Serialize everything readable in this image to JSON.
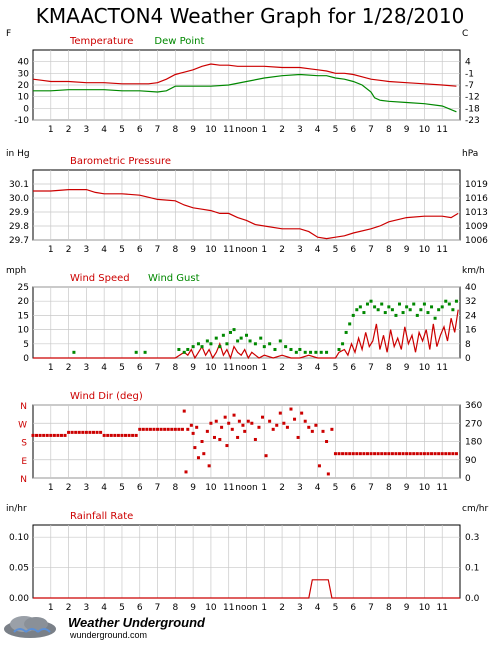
{
  "title": "KMAACTON4 Weather Graph for 1/28/2010",
  "hour_labels": [
    "1",
    "2",
    "3",
    "4",
    "5",
    "6",
    "7",
    "8",
    "9",
    "10",
    "11",
    "noon",
    "1",
    "2",
    "3",
    "4",
    "5",
    "6",
    "7",
    "8",
    "9",
    "10",
    "11"
  ],
  "logo": {
    "name": "Weather Underground",
    "url": "wunderground.com"
  },
  "colors": {
    "red": "#cc0000",
    "green": "#008800",
    "grid": "#c8c8c8"
  },
  "chart_data": [
    {
      "type": "line",
      "title": "Temperature",
      "ylabel": "F",
      "ylabel2": "C",
      "ylim": [
        -10,
        50
      ],
      "yticks": [
        40,
        30,
        20,
        10,
        0,
        -10
      ],
      "yticks2": [
        "4",
        "-1",
        "-7",
        "-12",
        "-18",
        "-23"
      ],
      "x_range_hours": [
        0,
        24
      ],
      "series": [
        {
          "name": "Temperature",
          "color": "#cc0000",
          "x": [
            0,
            0.5,
            1,
            2,
            3,
            4,
            5,
            6,
            6.5,
            7,
            7.5,
            8,
            8.5,
            9,
            9.5,
            10,
            10.5,
            11,
            11.5,
            12,
            13,
            14,
            15,
            15.5,
            16,
            16.5,
            17,
            17.5,
            18,
            18.5,
            19,
            19.5,
            20,
            21,
            22,
            23,
            23.8
          ],
          "values": [
            25,
            24,
            23,
            23,
            22,
            22,
            21,
            21,
            21,
            22,
            25,
            29,
            31,
            33,
            36,
            38,
            37,
            37,
            36,
            36,
            36,
            35,
            35,
            34,
            33,
            32,
            30,
            30,
            29,
            27,
            25,
            24,
            23,
            22,
            21,
            20,
            19
          ]
        },
        {
          "name": "Dew Point",
          "color": "#008800",
          "x": [
            0,
            1,
            2,
            3,
            4,
            5,
            6,
            7,
            7.5,
            8,
            9,
            10,
            11,
            12,
            13,
            14,
            15,
            16,
            16.5,
            17,
            17.5,
            18,
            18.5,
            19,
            19.2,
            19.5,
            20,
            21,
            22,
            23,
            23.8
          ],
          "values": [
            15,
            15,
            16,
            16,
            16,
            15,
            15,
            14,
            15,
            19,
            19,
            19,
            20,
            23,
            26,
            28,
            29,
            28,
            28,
            26,
            25,
            23,
            20,
            14,
            9,
            7,
            6,
            5,
            4,
            2,
            -3
          ]
        }
      ]
    },
    {
      "type": "line",
      "title": "Barometric Pressure",
      "ylabel": "in Hg",
      "ylabel2": "hPa",
      "ylim": [
        29.7,
        30.2
      ],
      "yticks": [
        30.1,
        30.0,
        29.9,
        29.8,
        29.7
      ],
      "yticks2": [
        "1019",
        "1016",
        "1013",
        "1009",
        "1006"
      ],
      "x_range_hours": [
        0,
        24
      ],
      "series": [
        {
          "color": "#cc0000",
          "x": [
            0,
            1,
            2,
            3,
            3.5,
            4,
            5,
            6,
            7,
            8,
            8.5,
            9,
            9.5,
            10,
            10.5,
            11,
            11.5,
            12,
            12.5,
            13,
            14,
            15,
            15.5,
            16,
            16.5,
            17,
            17.5,
            18,
            19,
            19.5,
            20,
            21,
            22,
            23,
            23.5,
            23.9
          ],
          "values": [
            30.05,
            30.05,
            30.06,
            30.06,
            30.04,
            30.03,
            30.03,
            30.02,
            29.99,
            29.98,
            29.95,
            29.93,
            29.92,
            29.91,
            29.89,
            29.89,
            29.86,
            29.84,
            29.81,
            29.8,
            29.78,
            29.78,
            29.76,
            29.72,
            29.71,
            29.72,
            29.73,
            29.75,
            29.78,
            29.8,
            29.83,
            29.86,
            29.87,
            29.87,
            29.86,
            29.89
          ]
        }
      ]
    },
    {
      "type": "line",
      "title": "Wind Speed",
      "ylabel": "mph",
      "ylabel2": "km/h",
      "ylim": [
        0,
        25
      ],
      "yticks": [
        25,
        20,
        15,
        10,
        5,
        0
      ],
      "yticks2": [
        "40",
        "32",
        "24",
        "16",
        "8",
        "0"
      ],
      "x_range_hours": [
        0,
        24
      ],
      "series": [
        {
          "name": "Wind Speed",
          "color": "#cc0000",
          "x": [
            0,
            1,
            2,
            3,
            4,
            5,
            6,
            7,
            8,
            8.5,
            8.7,
            8.9,
            9.1,
            9.3,
            9.5,
            9.7,
            9.9,
            10.1,
            10.3,
            10.5,
            10.7,
            10.9,
            11.1,
            11.3,
            11.5,
            11.7,
            11.9,
            12.1,
            12.3,
            12.5,
            12.7,
            13,
            13.5,
            14,
            14.5,
            15,
            15.5,
            16,
            16.5,
            17,
            17.2,
            17.5,
            17.7,
            17.9,
            18.1,
            18.3,
            18.5,
            18.7,
            18.9,
            19.1,
            19.3,
            19.5,
            19.7,
            19.9,
            20.1,
            20.3,
            20.5,
            20.7,
            20.9,
            21.1,
            21.3,
            21.5,
            21.7,
            21.9,
            22.1,
            22.3,
            22.5,
            22.7,
            22.9,
            23.1,
            23.3,
            23.5,
            23.7,
            23.9
          ],
          "values": [
            0,
            0,
            0,
            0,
            0,
            0,
            0,
            0,
            0,
            2,
            1,
            3,
            0,
            2,
            4,
            1,
            3,
            0,
            2,
            5,
            1,
            3,
            0,
            4,
            2,
            1,
            3,
            0,
            2,
            1,
            0,
            1,
            0,
            1,
            0,
            0,
            1,
            0,
            0,
            0,
            2,
            3,
            1,
            5,
            2,
            7,
            3,
            9,
            4,
            6,
            12,
            3,
            8,
            2,
            10,
            4,
            7,
            3,
            11,
            5,
            8,
            2,
            9,
            6,
            10,
            3,
            12,
            4,
            8,
            11,
            6,
            14,
            9,
            17
          ]
        },
        {
          "name": "Wind Gust",
          "color": "#008800",
          "type": "scatter",
          "x": [
            2.3,
            5.8,
            6.3,
            8.2,
            8.5,
            8.7,
            9.0,
            9.3,
            9.5,
            9.8,
            10.0,
            10.3,
            10.5,
            10.7,
            10.9,
            11.1,
            11.3,
            11.5,
            11.7,
            12.0,
            12.2,
            12.5,
            12.8,
            13.0,
            13.3,
            13.6,
            13.9,
            14.2,
            14.5,
            14.8,
            15.0,
            15.3,
            15.6,
            15.9,
            16.2,
            16.5,
            17.2,
            17.4,
            17.6,
            17.8,
            18.0,
            18.2,
            18.4,
            18.6,
            18.8,
            19.0,
            19.2,
            19.4,
            19.6,
            19.8,
            20.0,
            20.2,
            20.4,
            20.6,
            20.8,
            21.0,
            21.2,
            21.4,
            21.6,
            21.8,
            22.0,
            22.2,
            22.4,
            22.6,
            22.8,
            23.0,
            23.2,
            23.4,
            23.6,
            23.8
          ],
          "values": [
            2,
            2,
            2,
            3,
            2,
            3,
            4,
            5,
            4,
            6,
            5,
            7,
            4,
            8,
            5,
            9,
            10,
            6,
            7,
            8,
            6,
            5,
            7,
            4,
            5,
            3,
            6,
            4,
            3,
            2,
            3,
            2,
            2,
            2,
            2,
            2,
            3,
            5,
            9,
            12,
            15,
            17,
            18,
            16,
            19,
            20,
            18,
            17,
            19,
            16,
            18,
            17,
            15,
            19,
            16,
            18,
            17,
            19,
            15,
            17,
            19,
            16,
            18,
            14,
            17,
            18,
            20,
            19,
            17,
            20
          ]
        }
      ]
    },
    {
      "type": "scatter",
      "title": "Wind Dir (deg)",
      "ylabel2_ticks": [
        "360",
        "270",
        "180",
        "90",
        "0"
      ],
      "yticks_left": [
        "N",
        "W",
        "S",
        "E",
        "N"
      ],
      "ylim": [
        0,
        360
      ],
      "x_range_hours": [
        0,
        24
      ],
      "series": [
        {
          "color": "#cc0000",
          "x": [
            0,
            0.2,
            0.4,
            0.6,
            0.8,
            1.0,
            1.2,
            1.4,
            1.6,
            1.8,
            2.0,
            2.2,
            2.4,
            2.6,
            2.8,
            3.0,
            3.2,
            3.4,
            3.6,
            3.8,
            4.0,
            4.2,
            4.4,
            4.6,
            4.8,
            5.0,
            5.2,
            5.4,
            5.6,
            5.8,
            6.0,
            6.2,
            6.4,
            6.6,
            6.8,
            7.0,
            7.2,
            7.4,
            7.6,
            7.8,
            8.0,
            8.2,
            8.4,
            8.5,
            8.6,
            8.7,
            8.9,
            9.0,
            9.1,
            9.2,
            9.3,
            9.5,
            9.6,
            9.8,
            9.9,
            10.0,
            10.2,
            10.3,
            10.5,
            10.6,
            10.8,
            10.9,
            11.0,
            11.2,
            11.3,
            11.5,
            11.6,
            11.8,
            11.9,
            12.1,
            12.3,
            12.5,
            12.7,
            12.9,
            13.1,
            13.3,
            13.5,
            13.7,
            13.9,
            14.1,
            14.3,
            14.5,
            14.7,
            14.9,
            15.1,
            15.3,
            15.5,
            15.7,
            15.9,
            16.1,
            16.3,
            16.5,
            16.6,
            16.8,
            17.0,
            17.2,
            17.4,
            17.6,
            17.8,
            18.0,
            18.2,
            18.4,
            18.6,
            18.8,
            19.0,
            19.2,
            19.4,
            19.6,
            19.8,
            20.0,
            20.2,
            20.4,
            20.6,
            20.8,
            21.0,
            21.2,
            21.4,
            21.6,
            21.8,
            22.0,
            22.2,
            22.4,
            22.6,
            22.8,
            23.0,
            23.2,
            23.4,
            23.6,
            23.8
          ],
          "values": [
            210,
            210,
            210,
            210,
            210,
            210,
            210,
            210,
            210,
            210,
            225,
            225,
            225,
            225,
            225,
            225,
            225,
            225,
            225,
            225,
            210,
            210,
            210,
            210,
            210,
            210,
            210,
            210,
            210,
            210,
            240,
            240,
            240,
            240,
            240,
            240,
            240,
            240,
            240,
            240,
            240,
            240,
            240,
            330,
            30,
            240,
            260,
            220,
            150,
            250,
            100,
            180,
            120,
            230,
            60,
            270,
            200,
            280,
            190,
            250,
            300,
            160,
            270,
            240,
            310,
            200,
            280,
            260,
            230,
            280,
            270,
            190,
            250,
            300,
            110,
            280,
            240,
            260,
            320,
            270,
            250,
            340,
            290,
            200,
            320,
            280,
            250,
            230,
            260,
            60,
            230,
            180,
            20,
            240,
            120,
            120,
            120,
            120,
            120,
            120,
            120,
            120,
            120,
            120,
            120,
            120,
            120,
            120,
            120,
            120,
            120,
            120,
            120,
            120,
            120,
            120,
            120,
            120,
            120,
            120,
            120,
            120,
            120,
            120,
            120,
            120,
            120,
            120,
            120
          ]
        }
      ]
    },
    {
      "type": "line",
      "title": "Rainfall Rate",
      "ylabel": "in/hr",
      "ylabel2": "cm/hr",
      "ylim": [
        0,
        0.12
      ],
      "yticks": [
        "0.10",
        "0.05",
        "0.00"
      ],
      "yticks2": [
        "0.3",
        "0.1",
        "0.0"
      ],
      "x_range_hours": [
        0,
        24
      ],
      "series": [
        {
          "color": "#cc0000",
          "x": [
            0,
            15.5,
            15.7,
            16.6,
            16.8,
            24
          ],
          "values": [
            0,
            0,
            0.03,
            0.03,
            0,
            0
          ]
        }
      ]
    }
  ]
}
